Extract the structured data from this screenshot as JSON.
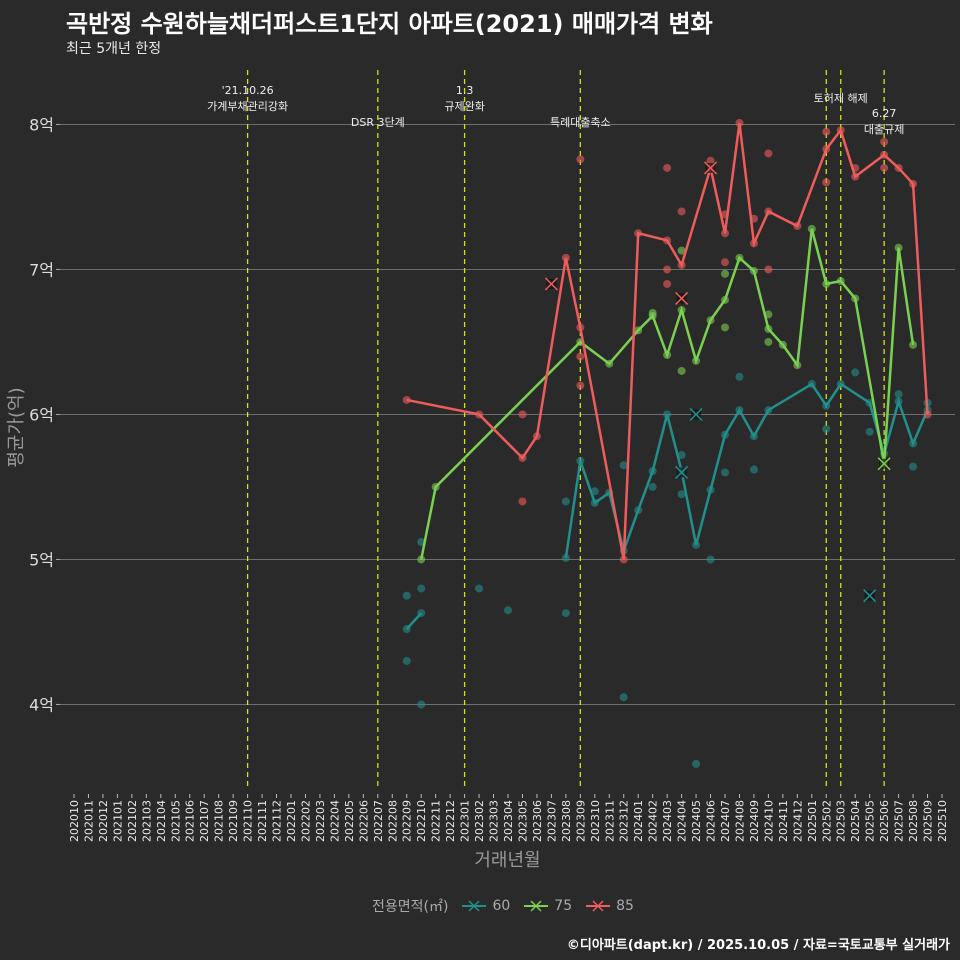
{
  "title": "곡반정 수원하늘채더퍼스트1단지 아파트(2021) 매매가격 변화",
  "subtitle": "최근 5개년 한정",
  "footer": "©디아파트(dapt.kr) / 2025.10.05 / 자료=국토교통부 실거래가",
  "chart_data": {
    "type": "line",
    "xlabel": "거래년월",
    "ylabel": "평균가(억)",
    "ylim": [
      3.41,
      8.41
    ],
    "yticks": [
      {
        "v": 4,
        "label": "4억"
      },
      {
        "v": 5,
        "label": "5억"
      },
      {
        "v": 6,
        "label": "6억"
      },
      {
        "v": 7,
        "label": "7억"
      },
      {
        "v": 8,
        "label": "8억"
      }
    ],
    "grid": true,
    "categories": [
      "202010",
      "202011",
      "202012",
      "202101",
      "202102",
      "202103",
      "202104",
      "202105",
      "202106",
      "202107",
      "202108",
      "202109",
      "202110",
      "202111",
      "202112",
      "202201",
      "202202",
      "202203",
      "202204",
      "202205",
      "202206",
      "202207",
      "202208",
      "202209",
      "202210",
      "202211",
      "202212",
      "202301",
      "202302",
      "202303",
      "202304",
      "202305",
      "202306",
      "202307",
      "202308",
      "202309",
      "202310",
      "202311",
      "202312",
      "202401",
      "202402",
      "202403",
      "202404",
      "202405",
      "202406",
      "202407",
      "202408",
      "202409",
      "202410",
      "202411",
      "202412",
      "202501",
      "202502",
      "202503",
      "202504",
      "202505",
      "202506",
      "202507",
      "202508",
      "202509",
      "202510"
    ],
    "legend": {
      "title": "전용면적(㎡)",
      "placement": "bottom"
    },
    "events": [
      {
        "month": "202110",
        "lines": [
          "'21.10.26",
          "가계부채관리강화"
        ],
        "row": 0
      },
      {
        "month": "202207",
        "lines": [
          "DSR 3단계"
        ],
        "row": 2
      },
      {
        "month": "202301",
        "lines": [
          "1.3",
          "규제완화"
        ],
        "row": 0
      },
      {
        "month": "202309",
        "lines": [
          "특례대출축소"
        ],
        "row": 2
      },
      {
        "month": "202502",
        "lines": [],
        "row": 0
      },
      {
        "month": "202503",
        "lines": [
          "토허제 해제"
        ],
        "row": 1
      },
      {
        "month": "202506",
        "lines": [
          "6.27",
          "대출규제"
        ],
        "row": 3
      }
    ],
    "series": [
      {
        "name": "60",
        "color": "#21908C",
        "line": [
          [
            "202209",
            4.52
          ],
          [
            "202210",
            4.63
          ],
          null,
          [
            "202308",
            5.01
          ],
          [
            "202309",
            5.68
          ],
          [
            "202310",
            5.39
          ],
          [
            "202311",
            5.46
          ],
          [
            "202312",
            5.06
          ],
          [
            "202401",
            5.34
          ],
          [
            "202402",
            5.61
          ],
          [
            "202403",
            6.0
          ],
          [
            "202404",
            5.61
          ],
          [
            "202405",
            5.1
          ],
          [
            "202406",
            5.48
          ],
          [
            "202407",
            5.86
          ],
          [
            "202408",
            6.03
          ],
          [
            "202409",
            5.85
          ],
          [
            "202410",
            6.03
          ],
          [
            "202501",
            6.21
          ],
          [
            "202502",
            6.06
          ],
          [
            "202503",
            6.21
          ],
          [
            "202505",
            6.08
          ],
          [
            "202506",
            5.73
          ],
          [
            "202507",
            6.09
          ],
          [
            "202508",
            5.8
          ],
          [
            "202509",
            6.03
          ]
        ],
        "points": [
          [
            "202209",
            4.75
          ],
          [
            "202209",
            4.3
          ],
          [
            "202210",
            4.8
          ],
          [
            "202210",
            5.12
          ],
          [
            "202210",
            4.0
          ],
          [
            "202302",
            4.8
          ],
          [
            "202304",
            4.65
          ],
          [
            "202308",
            5.4
          ],
          [
            "202308",
            4.63
          ],
          [
            "202310",
            5.47
          ],
          [
            "202312",
            5.65
          ],
          [
            "202312",
            4.05
          ],
          [
            "202405",
            3.59
          ],
          [
            "202406",
            5.0
          ],
          [
            "202402",
            5.5
          ],
          [
            "202404",
            5.72
          ],
          [
            "202404",
            5.45
          ],
          [
            "202407",
            5.6
          ],
          [
            "202408",
            6.26
          ],
          [
            "202409",
            5.62
          ],
          [
            "202502",
            5.9
          ],
          [
            "202504",
            6.29
          ],
          [
            "202505",
            5.88
          ],
          [
            "202508",
            5.64
          ],
          [
            "202507",
            6.14
          ],
          [
            "202509",
            6.08
          ]
        ],
        "crosses": [
          [
            "202404",
            5.6
          ],
          [
            "202405",
            6.0
          ],
          [
            "202505",
            4.75
          ]
        ]
      },
      {
        "name": "75",
        "color": "#7AD151",
        "line": [
          [
            "202210",
            5.0
          ],
          [
            "202211",
            5.5
          ],
          [
            "202309",
            6.5
          ],
          [
            "202311",
            6.35
          ],
          [
            "202401",
            6.58
          ],
          [
            "202402",
            6.68
          ],
          [
            "202403",
            6.41
          ],
          [
            "202404",
            6.72
          ],
          [
            "202405",
            6.37
          ],
          [
            "202406",
            6.65
          ],
          [
            "202407",
            6.79
          ],
          [
            "202408",
            7.08
          ],
          [
            "202409",
            6.99
          ],
          [
            "202410",
            6.59
          ],
          [
            "202411",
            6.48
          ],
          [
            "202412",
            6.34
          ],
          [
            "202501",
            7.28
          ],
          [
            "202502",
            6.9
          ],
          [
            "202503",
            6.92
          ],
          [
            "202504",
            6.8
          ],
          [
            "202506",
            5.66
          ],
          [
            "202507",
            7.15
          ],
          [
            "202508",
            6.48
          ]
        ],
        "points": [
          [
            "202404",
            6.3
          ],
          [
            "202404",
            7.13
          ],
          [
            "202407",
            6.6
          ],
          [
            "202407",
            6.97
          ],
          [
            "202410",
            6.5
          ],
          [
            "202410",
            6.69
          ],
          [
            "202402",
            6.7
          ]
        ],
        "crosses": [
          [
            "202506",
            5.66
          ]
        ]
      },
      {
        "name": "85",
        "color": "#EE5C5C",
        "line": [
          [
            "202209",
            6.1
          ],
          [
            "202302",
            6.0
          ],
          [
            "202305",
            5.7
          ],
          [
            "202306",
            5.85
          ],
          [
            "202308",
            7.08
          ],
          [
            "202309",
            6.6
          ],
          [
            "202312",
            5.0
          ],
          [
            "202401",
            7.25
          ],
          [
            "202403",
            7.2
          ],
          [
            "202404",
            7.03
          ],
          [
            "202406",
            7.7
          ],
          [
            "202407",
            7.25
          ],
          [
            "202408",
            8.01
          ],
          [
            "202409",
            7.18
          ],
          [
            "202410",
            7.4
          ],
          [
            "202412",
            7.3
          ],
          [
            "202502",
            7.83
          ],
          [
            "202503",
            7.96
          ],
          [
            "202504",
            7.64
          ],
          [
            "202506",
            7.79
          ],
          [
            "202507",
            7.7
          ],
          [
            "202508",
            7.59
          ],
          [
            "202509",
            6.0
          ]
        ],
        "points": [
          [
            "202305",
            6.0
          ],
          [
            "202305",
            5.4
          ],
          [
            "202309",
            7.76
          ],
          [
            "202309",
            6.4
          ],
          [
            "202309",
            6.2
          ],
          [
            "202403",
            7.7
          ],
          [
            "202403",
            7.0
          ],
          [
            "202403",
            6.9
          ],
          [
            "202404",
            7.4
          ],
          [
            "202407",
            7.38
          ],
          [
            "202407",
            7.05
          ],
          [
            "202410",
            7.8
          ],
          [
            "202410",
            7.0
          ],
          [
            "202409",
            7.35
          ],
          [
            "202502",
            7.6
          ],
          [
            "202502",
            7.95
          ],
          [
            "202504",
            7.7
          ],
          [
            "202506",
            7.88
          ],
          [
            "202506",
            7.7
          ],
          [
            "202406",
            7.75
          ]
        ],
        "crosses": [
          [
            "202307",
            6.9
          ],
          [
            "202404",
            6.8
          ],
          [
            "202406",
            7.7
          ]
        ]
      }
    ]
  }
}
